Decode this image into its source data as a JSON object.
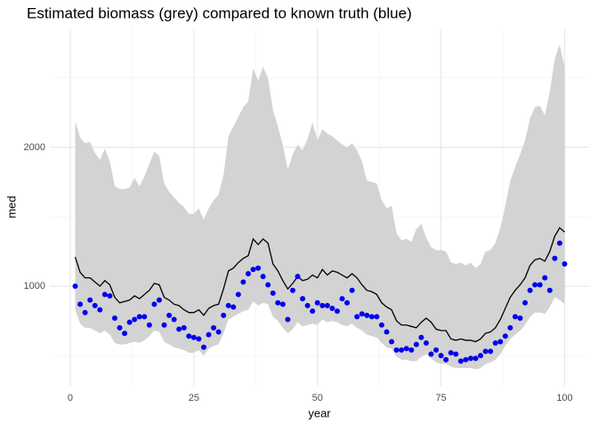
{
  "chart_data": {
    "type": "line",
    "title": "Estimated biomass (grey) compared to known truth (blue)",
    "x_label": "year",
    "y_label": "med",
    "x": [
      1,
      2,
      3,
      4,
      5,
      6,
      7,
      8,
      9,
      10,
      11,
      12,
      13,
      14,
      15,
      16,
      17,
      18,
      19,
      20,
      21,
      22,
      23,
      24,
      25,
      26,
      27,
      28,
      29,
      30,
      31,
      32,
      33,
      34,
      35,
      36,
      37,
      38,
      39,
      40,
      41,
      42,
      43,
      44,
      45,
      46,
      47,
      48,
      49,
      50,
      51,
      52,
      53,
      54,
      55,
      56,
      57,
      58,
      59,
      60,
      61,
      62,
      63,
      64,
      65,
      66,
      67,
      68,
      69,
      70,
      71,
      72,
      73,
      74,
      75,
      76,
      77,
      78,
      79,
      80,
      81,
      82,
      83,
      84,
      85,
      86,
      87,
      88,
      89,
      90,
      91,
      92,
      93,
      94,
      95,
      96,
      97,
      98,
      99,
      100
    ],
    "band": {
      "color": "#d3d3d3",
      "upper": [
        2190,
        2070,
        2030,
        2040,
        1960,
        1910,
        1990,
        1900,
        1720,
        1700,
        1700,
        1710,
        1780,
        1720,
        1790,
        1880,
        1970,
        1940,
        1740,
        1680,
        1640,
        1600,
        1570,
        1520,
        1520,
        1560,
        1480,
        1560,
        1620,
        1660,
        1800,
        2080,
        2150,
        2220,
        2290,
        2330,
        2570,
        2480,
        2580,
        2500,
        2270,
        2150,
        2020,
        1840,
        1950,
        2020,
        1980,
        2060,
        2180,
        2050,
        2130,
        2100,
        2080,
        2050,
        2020,
        2000,
        2030,
        1980,
        1900,
        1760,
        1750,
        1740,
        1620,
        1560,
        1580,
        1380,
        1330,
        1340,
        1320,
        1410,
        1450,
        1350,
        1280,
        1260,
        1260,
        1250,
        1170,
        1160,
        1170,
        1150,
        1170,
        1130,
        1160,
        1250,
        1260,
        1310,
        1420,
        1580,
        1760,
        1860,
        1950,
        2050,
        2210,
        2290,
        2300,
        2230,
        2400,
        2640,
        2740,
        2580
      ],
      "lower": [
        830,
        730,
        700,
        700,
        680,
        660,
        680,
        650,
        590,
        580,
        580,
        590,
        600,
        590,
        610,
        640,
        680,
        670,
        600,
        580,
        560,
        550,
        540,
        520,
        520,
        540,
        500,
        550,
        570,
        580,
        660,
        760,
        780,
        800,
        820,
        830,
        890,
        860,
        880,
        870,
        780,
        750,
        700,
        660,
        690,
        740,
        710,
        720,
        730,
        720,
        760,
        740,
        750,
        740,
        720,
        710,
        730,
        700,
        680,
        650,
        640,
        630,
        590,
        560,
        550,
        490,
        470,
        470,
        460,
        460,
        490,
        510,
        480,
        450,
        440,
        440,
        420,
        410,
        410,
        410,
        410,
        400,
        410,
        440,
        450,
        470,
        510,
        570,
        620,
        650,
        680,
        720,
        780,
        810,
        810,
        800,
        850,
        920,
        900,
        870
      ]
    },
    "series": [
      {
        "kind": "line",
        "color": "#000000",
        "values": [
          1210,
          1100,
          1060,
          1060,
          1030,
          1000,
          1040,
          1010,
          920,
          880,
          890,
          900,
          930,
          910,
          940,
          970,
          1020,
          1010,
          920,
          900,
          870,
          860,
          830,
          810,
          810,
          830,
          790,
          840,
          860,
          870,
          980,
          1110,
          1130,
          1170,
          1200,
          1220,
          1340,
          1300,
          1340,
          1310,
          1160,
          1110,
          1040,
          980,
          1020,
          1070,
          1040,
          1050,
          1080,
          1060,
          1120,
          1080,
          1110,
          1100,
          1080,
          1060,
          1090,
          1060,
          1010,
          970,
          960,
          940,
          880,
          850,
          830,
          750,
          720,
          720,
          710,
          700,
          740,
          770,
          740,
          690,
          680,
          680,
          620,
          610,
          620,
          610,
          610,
          600,
          620,
          660,
          670,
          700,
          760,
          840,
          920,
          970,
          1010,
          1060,
          1150,
          1190,
          1200,
          1180,
          1250,
          1360,
          1420,
          1390
        ]
      },
      {
        "kind": "points",
        "color": "#0000ee",
        "values": [
          1000,
          870,
          810,
          900,
          860,
          830,
          940,
          930,
          770,
          700,
          660,
          740,
          760,
          780,
          780,
          720,
          870,
          900,
          720,
          790,
          760,
          690,
          700,
          640,
          630,
          620,
          560,
          650,
          700,
          670,
          790,
          860,
          850,
          940,
          1030,
          1090,
          1120,
          1130,
          1070,
          1010,
          950,
          880,
          870,
          760,
          970,
          1070,
          910,
          860,
          820,
          880,
          860,
          860,
          840,
          820,
          910,
          880,
          970,
          780,
          800,
          790,
          780,
          780,
          720,
          670,
          600,
          540,
          540,
          550,
          540,
          580,
          630,
          590,
          510,
          540,
          500,
          470,
          520,
          510,
          460,
          470,
          480,
          480,
          500,
          530,
          530,
          590,
          600,
          640,
          700,
          780,
          770,
          880,
          970,
          1010,
          1010,
          1060,
          970,
          1200,
          1310,
          1160
        ]
      }
    ],
    "xlim": [
      -3.95,
      104.95
    ],
    "ylim": [
      283,
      2857
    ],
    "xticks": [
      0,
      25,
      50,
      75,
      100
    ],
    "yticks": [
      1000,
      2000
    ],
    "x_minor_grid": [
      12.5,
      37.5,
      62.5,
      87.5
    ],
    "y_minor_grid": [
      500,
      1500,
      2500
    ],
    "grid": true
  }
}
